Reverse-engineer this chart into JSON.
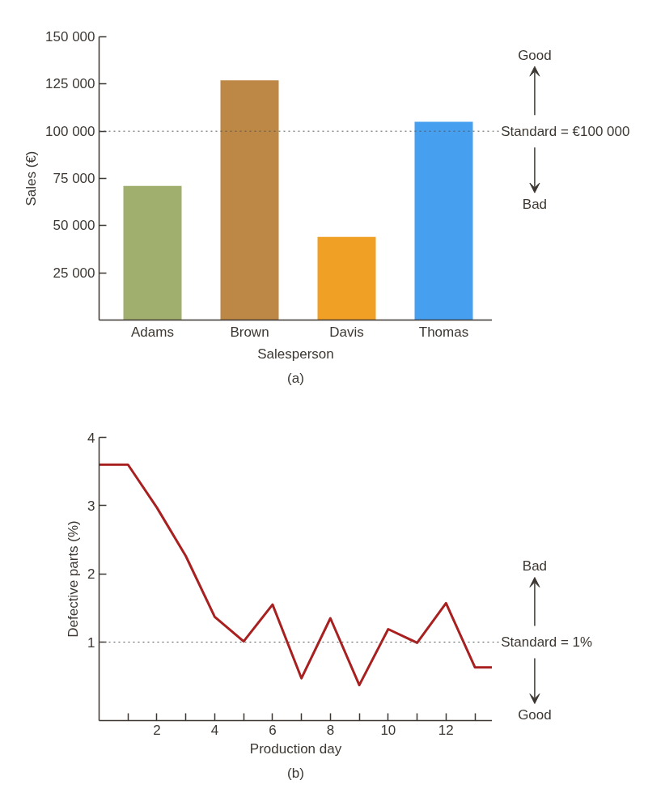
{
  "chart_data": [
    {
      "type": "bar",
      "xlabel": "Salesperson",
      "ylabel": "Sales (€)",
      "categories": [
        "Adams",
        "Brown",
        "Davis",
        "Thomas"
      ],
      "values": [
        71000,
        127000,
        44000,
        105000
      ],
      "colors": [
        "#a0af6d",
        "#bd8846",
        "#f0a024",
        "#46a0ef"
      ],
      "ylim": [
        0,
        150000
      ],
      "yticks": [
        {
          "value": 25000,
          "label": "25 000"
        },
        {
          "value": 50000,
          "label": "50 000"
        },
        {
          "value": 75000,
          "label": "75 000"
        },
        {
          "value": 100000,
          "label": "100 000"
        },
        {
          "value": 125000,
          "label": "125 000"
        },
        {
          "value": 150000,
          "label": "150 000"
        }
      ],
      "ref_lines": [
        {
          "axis": "y",
          "value": 100000,
          "label": "Standard = €100 000",
          "line_style": "dotted"
        }
      ],
      "annotations": [
        "Good",
        "Bad",
        "(a)"
      ]
    },
    {
      "type": "line",
      "xlabel": "Production day",
      "ylabel": "Defective parts (%)",
      "x": [
        0,
        1,
        2,
        3,
        4,
        5,
        6,
        7,
        8,
        9,
        10,
        11,
        12,
        13,
        13.6
      ],
      "series": [
        {
          "color": "#a8201f",
          "values": [
            3.6,
            3.6,
            2.97,
            2.26,
            1.37,
            1.01,
            1.55,
            0.47,
            1.35,
            0.37,
            1.19,
            0.99,
            1.57,
            0.63,
            0.63
          ]
        }
      ],
      "xlim": [
        0,
        13.6
      ],
      "ylim": [
        -0.15,
        4
      ],
      "xticks": [
        {
          "value": 1,
          "label": null
        },
        2,
        {
          "value": 3,
          "label": null
        },
        4,
        {
          "value": 5,
          "label": null
        },
        6,
        {
          "value": 7,
          "label": null
        },
        8,
        {
          "value": 9,
          "label": null
        },
        10,
        {
          "value": 11,
          "label": null
        },
        12,
        {
          "value": 13,
          "label": null
        }
      ],
      "yticks": [
        1,
        2,
        3,
        4
      ],
      "ref_lines": [
        {
          "axis": "y",
          "value": 1,
          "label": "Standard = 1%",
          "line_style": "dotted"
        }
      ],
      "annotations": [
        "Bad",
        "Good",
        "(b)"
      ]
    }
  ]
}
